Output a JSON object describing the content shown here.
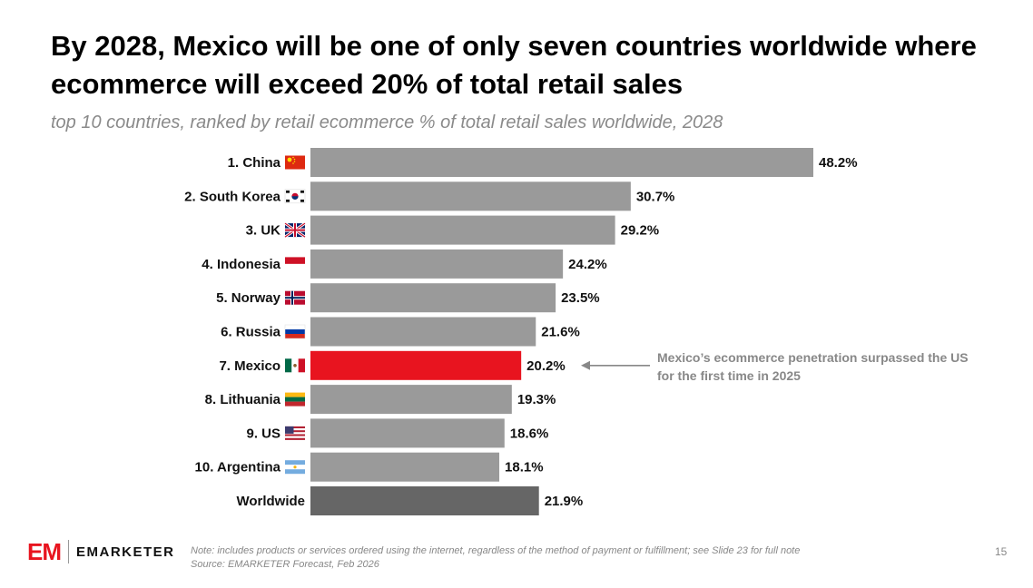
{
  "title": "By 2028, Mexico will be one of only seven countries worldwide where ecommerce will exceed 20% of total retail sales",
  "subtitle": "top 10 countries, ranked by retail ecommerce % of total retail sales worldwide, 2028",
  "chart_data": {
    "type": "bar",
    "orientation": "horizontal",
    "categories": [
      "1. China",
      "2. South Korea",
      "3. UK",
      "4. Indonesia",
      "5. Norway",
      "6. Russia",
      "7. Mexico",
      "8. Lithuania",
      "9. US",
      "10. Argentina",
      "Worldwide"
    ],
    "values": [
      48.2,
      30.7,
      29.2,
      24.2,
      23.5,
      21.6,
      20.2,
      19.3,
      18.6,
      18.1,
      21.9
    ],
    "value_labels": [
      "48.2%",
      "30.7%",
      "29.2%",
      "24.2%",
      "23.5%",
      "21.6%",
      "20.2%",
      "19.3%",
      "18.6%",
      "18.1%",
      "21.9%"
    ],
    "flags": [
      "china-flag",
      "south-korea-flag",
      "uk-flag",
      "indonesia-flag",
      "norway-flag",
      "russia-flag",
      "mexico-flag",
      "lithuania-flag",
      "us-flag",
      "argentina-flag",
      ""
    ],
    "colors": {
      "default": "#9a9a9a",
      "highlight": "#e8141f",
      "worldwide": "#666666"
    },
    "highlight_index": 6,
    "worldwide_index": 10,
    "xlim": [
      0,
      48.2
    ],
    "grid": false,
    "annotation": "Mexico’s ecommerce penetration surpassed the US for the first time in 2025"
  },
  "footer": {
    "logo_mark": "EM",
    "logo_text": "EMARKETER",
    "note": "Note: includes products or services ordered using the internet, regardless of the method of payment or fulfillment; see Slide 23 for full note",
    "source": "Source: EMARKETER Forecast, Feb 2026",
    "page_number": "15"
  }
}
